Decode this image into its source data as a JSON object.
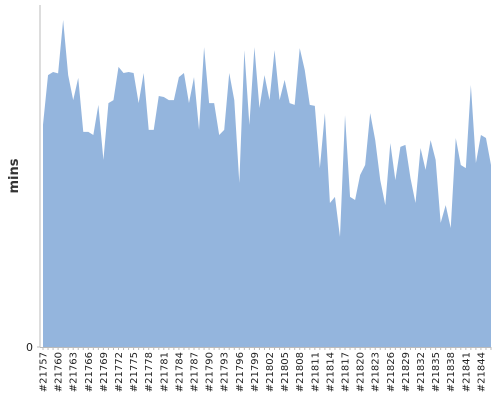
{
  "chart_data": {
    "type": "area",
    "y_label": "mins",
    "color": "#94b5dd",
    "categories": [
      "#21757",
      null,
      null,
      "#21760",
      null,
      null,
      "#21763",
      null,
      null,
      "#21766",
      null,
      null,
      "#21769",
      null,
      null,
      "#21772",
      null,
      null,
      "#21775",
      null,
      null,
      "#21778",
      null,
      null,
      "#21781",
      null,
      null,
      "#21784",
      null,
      null,
      "#21787",
      null,
      null,
      "#21790",
      null,
      null,
      "#21793",
      null,
      null,
      "#21796",
      null,
      null,
      "#21799",
      null,
      null,
      "#21802",
      null,
      null,
      "#21805",
      null,
      null,
      "#21808",
      null,
      null,
      "#21811",
      null,
      null,
      "#21814",
      null,
      null,
      "#21817",
      null,
      null,
      "#21820",
      null,
      null,
      "#21823",
      null,
      null,
      "#21826",
      null,
      null,
      "#21829",
      null,
      null,
      "#21832",
      null,
      null,
      "#21835",
      null,
      null,
      "#21838",
      null,
      null,
      "#21841",
      null,
      null,
      "#21844",
      null,
      null
    ],
    "values": [
      65,
      79.5,
      80.4,
      80,
      95.6,
      79.5,
      72.2,
      78.7,
      62.9,
      62.9,
      62,
      70.8,
      54.7,
      71.3,
      72.2,
      81.9,
      80.1,
      80.4,
      80.1,
      71.3,
      80.1,
      63.5,
      63.5,
      73.4,
      73.1,
      72.2,
      72.2,
      78.9,
      80.1,
      71.3,
      78.9,
      63.5,
      87.7,
      71.3,
      71.3,
      62,
      63.5,
      80.1,
      72.2,
      48,
      86.8,
      64.9,
      87.7,
      69.9,
      79.5,
      72.2,
      86.8,
      72.2,
      78.1,
      71.3,
      70.8,
      87.4,
      81,
      70.8,
      70.5,
      52.3,
      68.4,
      42.1,
      43.9,
      32.2,
      67.8,
      43.9,
      43,
      50.3,
      53.2,
      68.4,
      60.5,
      48.8,
      41.5,
      59.6,
      48.8,
      58.5,
      59.1,
      49.4,
      42.1,
      58.2,
      51.8,
      60.5,
      54.7,
      36.3,
      41.5,
      34.8,
      61.1,
      53.2,
      52.3,
      76.6,
      53.8,
      62,
      61.1,
      53.2
    ],
    "ylim": [
      0,
      100
    ],
    "yticks": [
      0
    ]
  }
}
